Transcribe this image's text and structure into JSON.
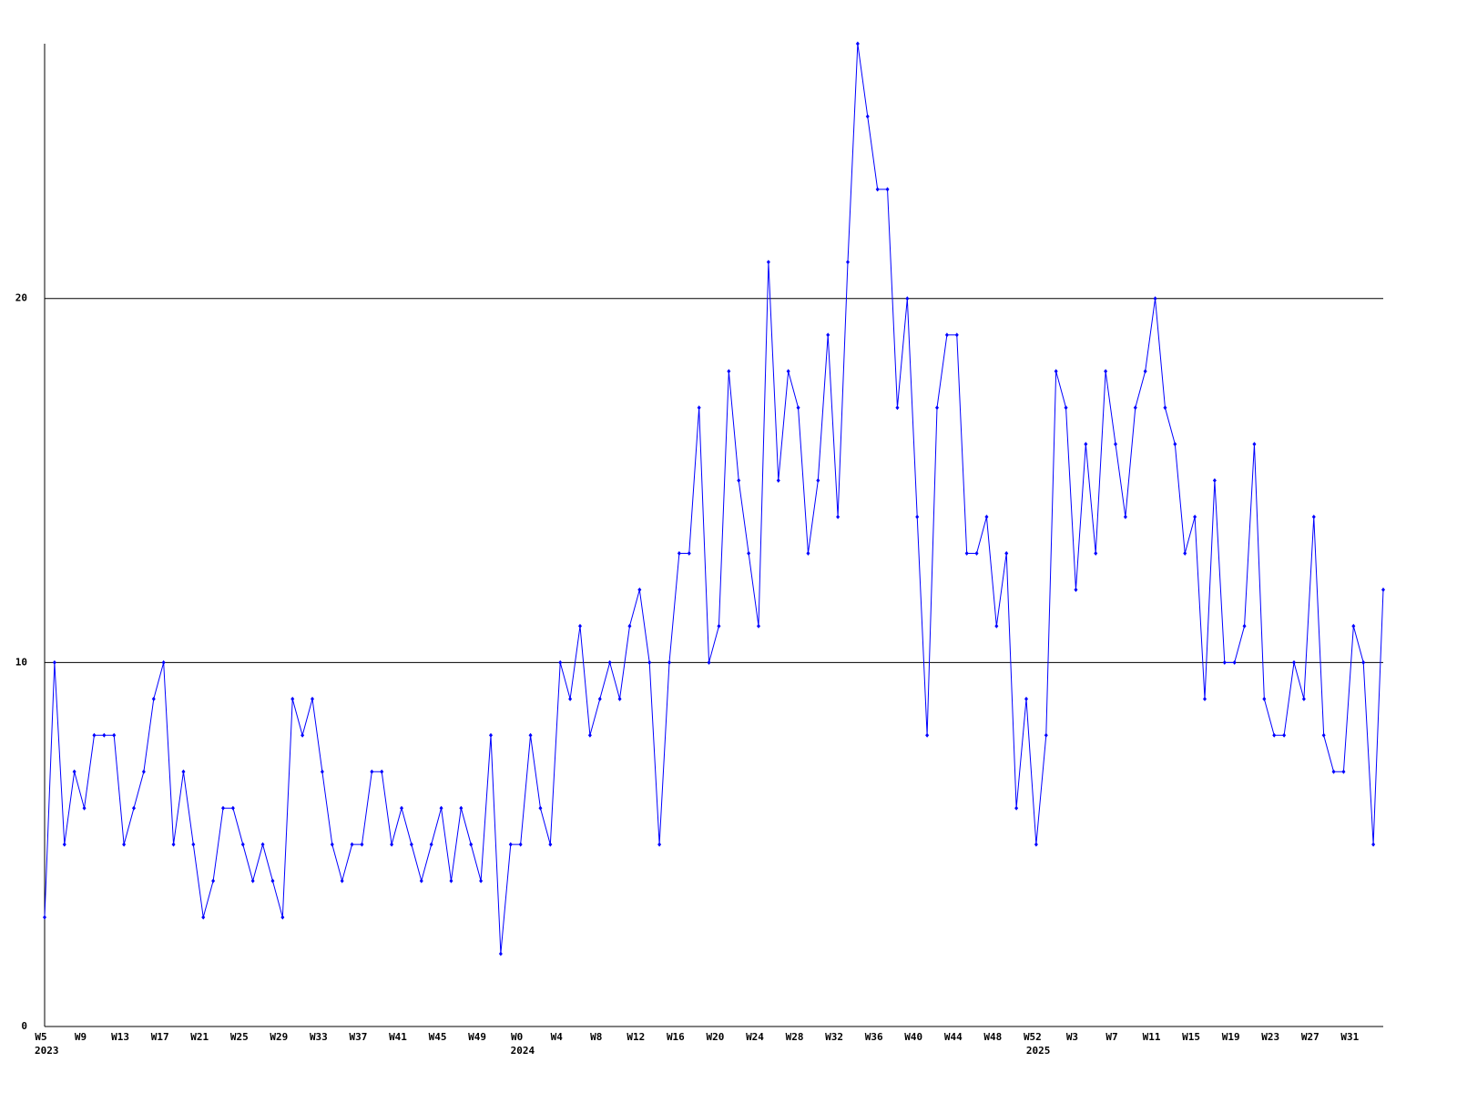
{
  "chart_data": {
    "type": "line",
    "categories": [
      "W5",
      null,
      null,
      null,
      "W9",
      null,
      null,
      null,
      "W13",
      null,
      null,
      null,
      "W17",
      null,
      null,
      null,
      "W21",
      null,
      null,
      null,
      "W25",
      null,
      null,
      null,
      "W29",
      null,
      null,
      null,
      "W33",
      null,
      null,
      null,
      "W37",
      null,
      null,
      null,
      "W41",
      null,
      null,
      null,
      "W45",
      null,
      null,
      null,
      "W49",
      null,
      null,
      null,
      "W0",
      null,
      null,
      null,
      "W4",
      null,
      null,
      null,
      "W8",
      null,
      null,
      null,
      "W12",
      null,
      null,
      null,
      "W16",
      null,
      null,
      null,
      "W20",
      null,
      null,
      null,
      "W24",
      null,
      null,
      null,
      "W28",
      null,
      null,
      null,
      "W32",
      null,
      null,
      null,
      "W36",
      null,
      null,
      null,
      "W40",
      null,
      null,
      null,
      "W44",
      null,
      null,
      null,
      "W48",
      null,
      null,
      null,
      "W52",
      null,
      null,
      null,
      "W3",
      null,
      null,
      null,
      "W7",
      null,
      null,
      null,
      "W11",
      null,
      null,
      null,
      "W15",
      null,
      null,
      null,
      "W19",
      null,
      null,
      null,
      "W23",
      null,
      null,
      null,
      "W27",
      null,
      null,
      null,
      "W31",
      null,
      null,
      null
    ],
    "category_years": [
      "2023",
      null,
      null,
      null,
      null,
      null,
      null,
      null,
      null,
      null,
      null,
      null,
      null,
      null,
      null,
      null,
      null,
      null,
      null,
      null,
      null,
      null,
      null,
      null,
      null,
      null,
      null,
      null,
      null,
      null,
      null,
      null,
      null,
      null,
      null,
      null,
      null,
      null,
      null,
      null,
      null,
      null,
      null,
      null,
      null,
      null,
      null,
      null,
      "2024",
      null,
      null,
      null,
      null,
      null,
      null,
      null,
      null,
      null,
      null,
      null,
      null,
      null,
      null,
      null,
      null,
      null,
      null,
      null,
      null,
      null,
      null,
      null,
      null,
      null,
      null,
      null,
      null,
      null,
      null,
      null,
      null,
      null,
      null,
      null,
      null,
      null,
      null,
      null,
      null,
      null,
      null,
      null,
      null,
      null,
      null,
      null,
      null,
      null,
      null,
      null,
      "2025",
      null,
      null,
      null,
      null,
      null,
      null,
      null,
      null,
      null,
      null,
      null,
      null,
      null,
      null,
      null,
      null,
      null,
      null,
      null,
      null,
      null,
      null,
      null,
      null,
      null,
      null,
      null,
      null,
      null,
      null,
      null,
      null,
      null,
      null
    ],
    "values": [
      3,
      10,
      5,
      7,
      6,
      8,
      8,
      8,
      5,
      6,
      7,
      9,
      10,
      5,
      7,
      5,
      3,
      4,
      6,
      6,
      5,
      4,
      5,
      4,
      3,
      9,
      8,
      9,
      7,
      5,
      4,
      5,
      5,
      7,
      7,
      5,
      6,
      5,
      4,
      5,
      6,
      4,
      6,
      5,
      4,
      8,
      2,
      5,
      5,
      8,
      6,
      5,
      10,
      9,
      11,
      8,
      9,
      10,
      9,
      11,
      12,
      10,
      5,
      10,
      13,
      13,
      17,
      10,
      11,
      18,
      15,
      13,
      11,
      21,
      15,
      18,
      17,
      13,
      15,
      19,
      14,
      21,
      27,
      25,
      23,
      23,
      17,
      20,
      14,
      8,
      17,
      19,
      19,
      13,
      13,
      14,
      11,
      13,
      6,
      9,
      5,
      8,
      18,
      17,
      12,
      16,
      13,
      18,
      16,
      14,
      17,
      18,
      20,
      17,
      16,
      13,
      14,
      9,
      15,
      10,
      10,
      11,
      16,
      9,
      8,
      8,
      10,
      9,
      14,
      8,
      7,
      7,
      11,
      10,
      5,
      12
    ],
    "color": "#0000ff",
    "ylim": [
      0,
      27
    ],
    "yticks": [
      0,
      10,
      20
    ],
    "grid": true
  }
}
